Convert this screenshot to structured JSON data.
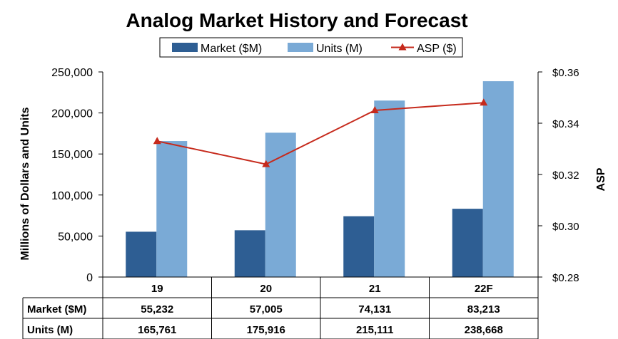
{
  "chart_data": {
    "type": "bar",
    "title": "Analog Market History and Forecast",
    "categories": [
      "19",
      "20",
      "21",
      "22F"
    ],
    "series": [
      {
        "name": "Market ($M)",
        "kind": "bar",
        "axis": "left",
        "color": "#2E5E93",
        "values": [
          55232,
          57005,
          74131,
          83213
        ],
        "formatted": [
          "55,232",
          "57,005",
          "74,131",
          "83,213"
        ]
      },
      {
        "name": "Units (M)",
        "kind": "bar",
        "axis": "left",
        "color": "#7AAAD6",
        "values": [
          165761,
          175916,
          215111,
          238668
        ],
        "formatted": [
          "165,761",
          "175,916",
          "215,111",
          "238,668"
        ]
      },
      {
        "name": "ASP ($)",
        "kind": "line",
        "axis": "right",
        "color": "#C62A1C",
        "marker": "triangle",
        "values": [
          0.333,
          0.324,
          0.345,
          0.348
        ]
      }
    ],
    "ylabel": "Millions of Dollars and Units",
    "y2label": "ASP",
    "ylim": [
      0,
      250000
    ],
    "yticks": [
      0,
      50000,
      100000,
      150000,
      200000,
      250000
    ],
    "ytick_labels": [
      "0",
      "50,000",
      "100,000",
      "150,000",
      "200,000",
      "250,000"
    ],
    "y2lim": [
      0.28,
      0.36
    ],
    "y2ticks": [
      0.28,
      0.3,
      0.32,
      0.34,
      0.36
    ],
    "y2tick_labels": [
      "$0.28",
      "$0.30",
      "$0.32",
      "$0.34",
      "$0.36"
    ],
    "legend": [
      "Market ($M)",
      "Units (M)",
      "ASP ($)"
    ],
    "legend_position": "top-center",
    "data_table_rows": [
      "Market ($M)",
      "Units (M)"
    ],
    "grid": false
  }
}
